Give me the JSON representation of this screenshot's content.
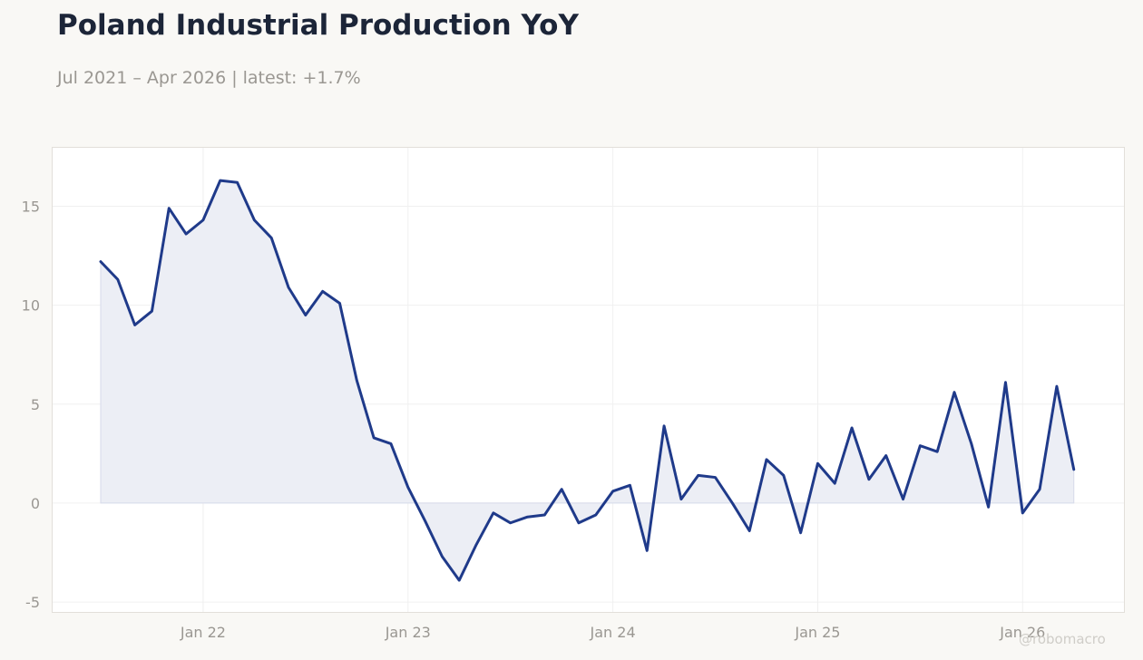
{
  "header": {
    "title": "Poland Industrial Production YoY",
    "subtitle": "Jul 2021 – Apr 2026 | latest: +1.7%"
  },
  "watermark": "@robomacro",
  "colors": {
    "line": "#1f3a8a",
    "fill": "#eceef5",
    "grid": "#f0f0f0",
    "frame": "#e2dfda",
    "background": "#f9f8f5",
    "plot_background": "#ffffff"
  },
  "chart_data": {
    "type": "area",
    "title": "Poland Industrial Production YoY",
    "subtitle": "Jul 2021 – Apr 2026 | latest: +1.7%",
    "xlabel": "",
    "ylabel": "",
    "ylim": [
      -5.5,
      18
    ],
    "grid": true,
    "legend": "none",
    "y_ticks": [
      -5,
      0,
      5,
      10,
      15
    ],
    "y_tick_labels": [
      "-5",
      "0",
      "5",
      "10",
      "15"
    ],
    "x_ticks": [
      "2022-01",
      "2023-01",
      "2024-01",
      "2025-01",
      "2026-01"
    ],
    "x_tick_labels": [
      "Jan 22",
      "Jan 23",
      "Jan 24",
      "Jan 25",
      "Jan 26"
    ],
    "x": [
      "2021-07",
      "2021-08",
      "2021-09",
      "2021-10",
      "2021-11",
      "2021-12",
      "2022-01",
      "2022-02",
      "2022-03",
      "2022-04",
      "2022-05",
      "2022-06",
      "2022-07",
      "2022-08",
      "2022-09",
      "2022-10",
      "2022-11",
      "2022-12",
      "2023-01",
      "2023-02",
      "2023-03",
      "2023-04",
      "2023-05",
      "2023-06",
      "2023-07",
      "2023-08",
      "2023-09",
      "2023-10",
      "2023-11",
      "2023-12",
      "2024-01",
      "2024-02",
      "2024-03",
      "2024-04",
      "2024-05",
      "2024-06",
      "2024-07",
      "2024-08",
      "2024-09",
      "2024-10",
      "2024-11",
      "2024-12",
      "2025-01",
      "2025-02",
      "2025-03",
      "2025-04",
      "2025-05",
      "2025-06",
      "2025-07",
      "2025-08",
      "2025-09",
      "2025-10",
      "2025-11",
      "2025-12",
      "2026-01",
      "2026-02",
      "2026-03",
      "2026-04"
    ],
    "series": [
      {
        "values": [
          12.2,
          11.3,
          9.0,
          9.7,
          14.9,
          13.6,
          14.3,
          16.3,
          16.2,
          14.3,
          13.4,
          10.9,
          9.5,
          10.7,
          10.1,
          6.2,
          3.3,
          3.0,
          0.8,
          -0.9,
          -2.7,
          -3.9,
          -2.1,
          -0.5,
          -1.0,
          -0.7,
          -0.6,
          0.7,
          -1.0,
          -0.6,
          0.6,
          0.9,
          -2.4,
          3.9,
          0.2,
          1.4,
          1.3,
          0.0,
          -1.4,
          2.2,
          1.4,
          -1.5,
          2.0,
          1.0,
          3.8,
          1.2,
          2.4,
          0.2,
          2.9,
          2.6,
          5.6,
          3.0,
          -0.2,
          6.1,
          -0.5,
          0.7,
          5.9,
          1.7
        ]
      }
    ]
  }
}
